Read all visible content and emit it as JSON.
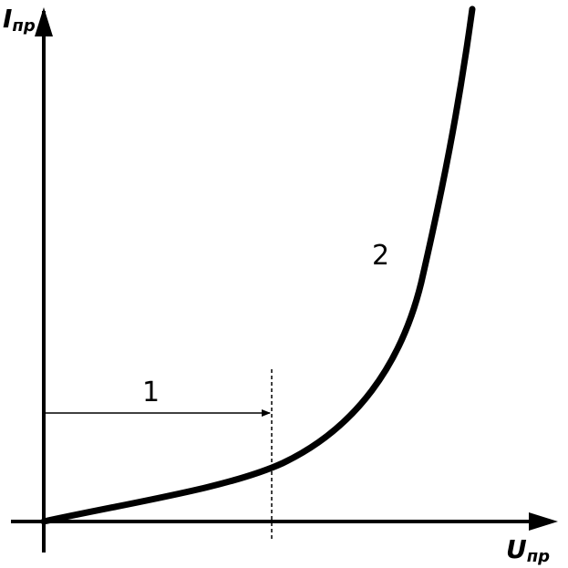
{
  "axes": {
    "y_label": {
      "main": "I",
      "sub": "пр"
    },
    "x_label": {
      "main": "U",
      "sub": "пр"
    }
  },
  "annotations": {
    "region_1": "1",
    "region_2": "2"
  }
}
